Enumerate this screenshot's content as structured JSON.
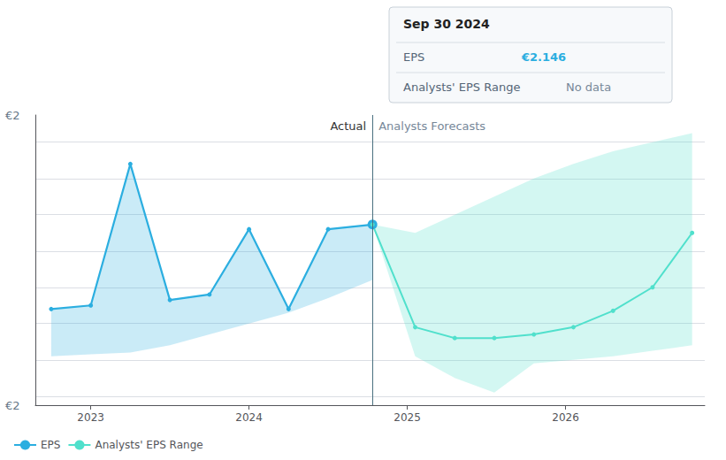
{
  "chart_data": {
    "type": "line",
    "xlim": [
      2022.65,
      2026.88
    ],
    "xticks": [
      2023,
      2024,
      2025,
      2026
    ],
    "ylim": [
      1.15,
      2.75
    ],
    "yticks": [
      1.2,
      1.4,
      1.6,
      1.8,
      2.0,
      2.2,
      2.4,
      2.6
    ],
    "grid": true,
    "tick_labels": "x",
    "legend": "lower left",
    "series": [
      {
        "name": "EPS",
        "color": "#2baee0",
        "x": [
          2022.75,
          2023.0,
          2023.25,
          2023.5,
          2023.75,
          2024.0,
          2024.25,
          2024.5,
          2024.78
        ],
        "values": [
          1.68,
          1.7,
          2.48,
          1.73,
          1.76,
          2.12,
          1.68,
          2.12,
          2.146
        ],
        "fill_base": [
          1.42,
          1.43,
          1.44,
          1.48,
          1.54,
          1.6,
          1.66,
          1.74,
          1.84
        ]
      },
      {
        "name": "Analysts' EPS Range",
        "color": "#50e0cc",
        "x": [
          2024.78,
          2025.05,
          2025.3,
          2025.55,
          2025.8,
          2026.05,
          2026.3,
          2026.55,
          2026.8
        ],
        "values": [
          2.146,
          1.58,
          1.52,
          1.52,
          1.54,
          1.58,
          1.67,
          1.8,
          2.1
        ],
        "upper": [
          2.146,
          2.1,
          2.2,
          2.3,
          2.4,
          2.48,
          2.55,
          2.6,
          2.65
        ],
        "lower": [
          2.146,
          1.42,
          1.3,
          1.22,
          1.38,
          1.4,
          1.42,
          1.45,
          1.48
        ]
      }
    ],
    "annotations": [
      "Actual",
      "Analysts Forecasts",
      "€2",
      "€2",
      "Sep 30 2024",
      "EPS",
      "€2.146",
      "Analysts' EPS Range",
      "No data"
    ]
  }
}
